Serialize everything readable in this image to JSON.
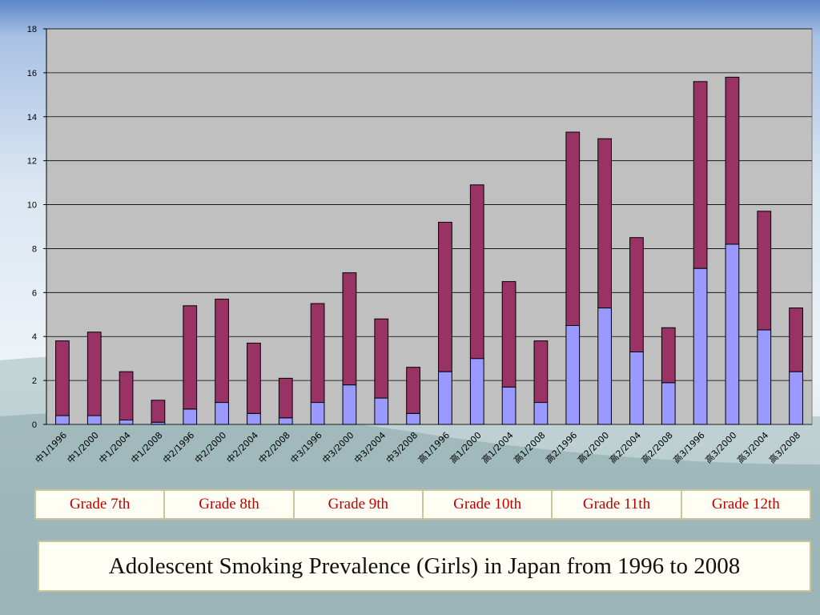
{
  "chart_data": {
    "type": "bar",
    "stacked": true,
    "categories": [
      "中1/1996",
      "中1/2000",
      "中1/2004",
      "中1/2008",
      "中2/1996",
      "中2/2000",
      "中2/2004",
      "中2/2008",
      "中3/1996",
      "中3/2000",
      "中3/2004",
      "中3/2008",
      "高1/1996",
      "高1/2000",
      "高1/2004",
      "高1/2008",
      "高2/1996",
      "高2/2000",
      "高2/2004",
      "高2/2008",
      "高3/1996",
      "高3/2000",
      "高3/2004",
      "高3/2008"
    ],
    "series": [
      {
        "color": "#9999ff",
        "values": [
          0.4,
          0.4,
          0.2,
          0.1,
          0.7,
          1.0,
          0.5,
          0.3,
          1.0,
          1.8,
          1.2,
          0.5,
          2.4,
          3.0,
          1.7,
          1.0,
          4.5,
          5.3,
          3.3,
          1.9,
          7.1,
          8.2,
          4.3,
          2.4
        ]
      },
      {
        "color": "#993366",
        "values": [
          3.4,
          3.8,
          2.2,
          1.0,
          4.7,
          4.7,
          3.2,
          1.8,
          4.5,
          5.1,
          3.6,
          2.1,
          6.8,
          7.9,
          4.8,
          2.8,
          8.8,
          7.7,
          5.2,
          2.5,
          8.5,
          7.6,
          5.4,
          2.9
        ]
      }
    ],
    "ylim": [
      0,
      18
    ],
    "yticks": [
      0,
      2,
      4,
      6,
      8,
      10,
      12,
      14,
      16,
      18
    ],
    "grid": true,
    "plot_background": "#c0c0c0"
  },
  "grade_labels": [
    "Grade 7th",
    "Grade 8th",
    "Grade 9th",
    "Grade 10th",
    "Grade 11th",
    "Grade 12th"
  ],
  "caption": "Adolescent Smoking Prevalence (Girls) in Japan from 1996 to 2008"
}
